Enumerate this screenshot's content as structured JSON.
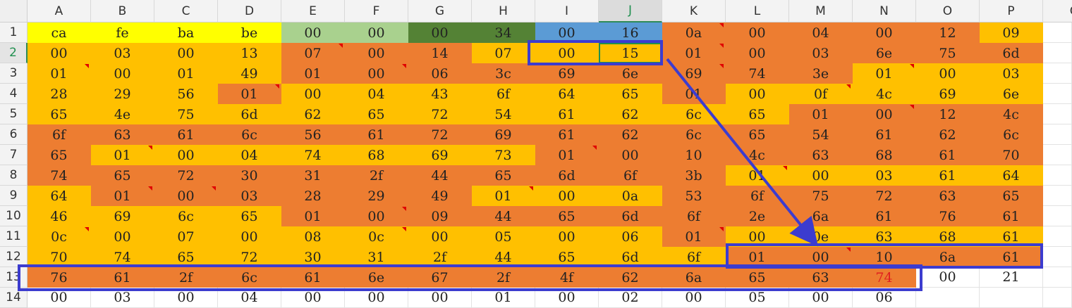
{
  "columns": [
    "A",
    "B",
    "C",
    "D",
    "E",
    "F",
    "G",
    "H",
    "I",
    "J",
    "K",
    "L",
    "M",
    "N",
    "O",
    "P",
    "Q"
  ],
  "selected_column": "J",
  "selected_row": "2",
  "colors": {
    "yellow": "#ffff00",
    "light_green": "#a9d18e",
    "dark_green": "#548235",
    "blue": "#5b9bd5",
    "orange": "#ed7d31",
    "gold": "#ffc000",
    "white": "#ffffff",
    "annotation": "#3c3ccf"
  },
  "rows": [
    {
      "label": "1",
      "cells": [
        {
          "v": "ca",
          "c": "yellow"
        },
        {
          "v": "fe",
          "c": "yellow"
        },
        {
          "v": "ba",
          "c": "yellow"
        },
        {
          "v": "be",
          "c": "yellow"
        },
        {
          "v": "00",
          "c": "light_green"
        },
        {
          "v": "00",
          "c": "light_green"
        },
        {
          "v": "00",
          "c": "dark_green"
        },
        {
          "v": "34",
          "c": "dark_green"
        },
        {
          "v": "00",
          "c": "blue"
        },
        {
          "v": "16",
          "c": "blue"
        },
        {
          "v": "0a",
          "c": "orange",
          "m": 1
        },
        {
          "v": "00",
          "c": "orange"
        },
        {
          "v": "04",
          "c": "orange"
        },
        {
          "v": "00",
          "c": "orange"
        },
        {
          "v": "12",
          "c": "orange"
        },
        {
          "v": "09",
          "c": "gold"
        }
      ]
    },
    {
      "label": "2",
      "cells": [
        {
          "v": "00",
          "c": "gold"
        },
        {
          "v": "03",
          "c": "gold"
        },
        {
          "v": "00",
          "c": "gold"
        },
        {
          "v": "13",
          "c": "gold"
        },
        {
          "v": "07",
          "c": "orange",
          "m": 1
        },
        {
          "v": "00",
          "c": "orange"
        },
        {
          "v": "14",
          "c": "orange"
        },
        {
          "v": "07",
          "c": "gold"
        },
        {
          "v": "00",
          "c": "gold"
        },
        {
          "v": "15",
          "c": "gold",
          "a": 1
        },
        {
          "v": "01",
          "c": "orange",
          "m": 1
        },
        {
          "v": "00",
          "c": "orange"
        },
        {
          "v": "03",
          "c": "orange"
        },
        {
          "v": "6e",
          "c": "orange"
        },
        {
          "v": "75",
          "c": "orange"
        },
        {
          "v": "6d",
          "c": "orange"
        }
      ]
    },
    {
      "label": "3",
      "cells": [
        {
          "v": "01",
          "c": "gold",
          "m": 1
        },
        {
          "v": "00",
          "c": "gold"
        },
        {
          "v": "01",
          "c": "gold"
        },
        {
          "v": "49",
          "c": "gold"
        },
        {
          "v": "01",
          "c": "orange"
        },
        {
          "v": "00",
          "c": "orange",
          "m": 1
        },
        {
          "v": "06",
          "c": "orange"
        },
        {
          "v": "3c",
          "c": "orange"
        },
        {
          "v": "69",
          "c": "orange"
        },
        {
          "v": "6e",
          "c": "orange"
        },
        {
          "v": "69",
          "c": "orange",
          "m": 1
        },
        {
          "v": "74",
          "c": "orange"
        },
        {
          "v": "3e",
          "c": "orange"
        },
        {
          "v": "01",
          "c": "gold",
          "m": 1
        },
        {
          "v": "00",
          "c": "gold"
        },
        {
          "v": "03",
          "c": "gold"
        }
      ]
    },
    {
      "label": "4",
      "cells": [
        {
          "v": "28",
          "c": "gold"
        },
        {
          "v": "29",
          "c": "gold"
        },
        {
          "v": "56",
          "c": "gold"
        },
        {
          "v": "01",
          "c": "orange",
          "m": 1
        },
        {
          "v": "00",
          "c": "gold"
        },
        {
          "v": "04",
          "c": "gold"
        },
        {
          "v": "43",
          "c": "gold"
        },
        {
          "v": "6f",
          "c": "gold"
        },
        {
          "v": "64",
          "c": "gold"
        },
        {
          "v": "65",
          "c": "gold"
        },
        {
          "v": "01",
          "c": "orange"
        },
        {
          "v": "00",
          "c": "gold"
        },
        {
          "v": "0f",
          "c": "gold",
          "m": 1
        },
        {
          "v": "4c",
          "c": "gold"
        },
        {
          "v": "69",
          "c": "gold"
        },
        {
          "v": "6e",
          "c": "gold"
        }
      ]
    },
    {
      "label": "5",
      "cells": [
        {
          "v": "65",
          "c": "gold"
        },
        {
          "v": "4e",
          "c": "gold"
        },
        {
          "v": "75",
          "c": "gold"
        },
        {
          "v": "6d",
          "c": "gold"
        },
        {
          "v": "62",
          "c": "gold"
        },
        {
          "v": "65",
          "c": "gold"
        },
        {
          "v": "72",
          "c": "gold"
        },
        {
          "v": "54",
          "c": "gold"
        },
        {
          "v": "61",
          "c": "gold"
        },
        {
          "v": "62",
          "c": "gold"
        },
        {
          "v": "6c",
          "c": "gold"
        },
        {
          "v": "65",
          "c": "gold"
        },
        {
          "v": "01",
          "c": "orange"
        },
        {
          "v": "00",
          "c": "orange",
          "m": 1
        },
        {
          "v": "12",
          "c": "orange"
        },
        {
          "v": "4c",
          "c": "orange"
        }
      ]
    },
    {
      "label": "6",
      "cells": [
        {
          "v": "6f",
          "c": "orange"
        },
        {
          "v": "63",
          "c": "orange"
        },
        {
          "v": "61",
          "c": "orange"
        },
        {
          "v": "6c",
          "c": "orange"
        },
        {
          "v": "56",
          "c": "orange"
        },
        {
          "v": "61",
          "c": "orange"
        },
        {
          "v": "72",
          "c": "orange"
        },
        {
          "v": "69",
          "c": "orange"
        },
        {
          "v": "61",
          "c": "orange"
        },
        {
          "v": "62",
          "c": "orange"
        },
        {
          "v": "6c",
          "c": "orange"
        },
        {
          "v": "65",
          "c": "orange"
        },
        {
          "v": "54",
          "c": "orange"
        },
        {
          "v": "61",
          "c": "orange"
        },
        {
          "v": "62",
          "c": "orange"
        },
        {
          "v": "6c",
          "c": "orange"
        }
      ]
    },
    {
      "label": "7",
      "cells": [
        {
          "v": "65",
          "c": "orange"
        },
        {
          "v": "01",
          "c": "gold",
          "m": 1
        },
        {
          "v": "00",
          "c": "gold"
        },
        {
          "v": "04",
          "c": "gold"
        },
        {
          "v": "74",
          "c": "gold"
        },
        {
          "v": "68",
          "c": "gold"
        },
        {
          "v": "69",
          "c": "gold"
        },
        {
          "v": "73",
          "c": "gold"
        },
        {
          "v": "01",
          "c": "orange",
          "m": 1
        },
        {
          "v": "00",
          "c": "orange"
        },
        {
          "v": "10",
          "c": "orange"
        },
        {
          "v": "4c",
          "c": "orange"
        },
        {
          "v": "63",
          "c": "orange"
        },
        {
          "v": "68",
          "c": "orange"
        },
        {
          "v": "61",
          "c": "orange"
        },
        {
          "v": "70",
          "c": "orange"
        }
      ]
    },
    {
      "label": "8",
      "cells": [
        {
          "v": "74",
          "c": "orange"
        },
        {
          "v": "65",
          "c": "orange"
        },
        {
          "v": "72",
          "c": "orange"
        },
        {
          "v": "30",
          "c": "orange"
        },
        {
          "v": "31",
          "c": "orange"
        },
        {
          "v": "2f",
          "c": "orange"
        },
        {
          "v": "44",
          "c": "orange"
        },
        {
          "v": "65",
          "c": "orange"
        },
        {
          "v": "6d",
          "c": "orange"
        },
        {
          "v": "6f",
          "c": "orange"
        },
        {
          "v": "3b",
          "c": "orange"
        },
        {
          "v": "01",
          "c": "gold",
          "m": 1
        },
        {
          "v": "00",
          "c": "gold"
        },
        {
          "v": "03",
          "c": "gold"
        },
        {
          "v": "61",
          "c": "gold"
        },
        {
          "v": "64",
          "c": "gold"
        }
      ]
    },
    {
      "label": "9",
      "cells": [
        {
          "v": "64",
          "c": "gold"
        },
        {
          "v": "01",
          "c": "orange",
          "m": 1
        },
        {
          "v": "00",
          "c": "orange",
          "m": 1
        },
        {
          "v": "03",
          "c": "orange"
        },
        {
          "v": "28",
          "c": "orange"
        },
        {
          "v": "29",
          "c": "orange"
        },
        {
          "v": "49",
          "c": "orange"
        },
        {
          "v": "01",
          "c": "gold",
          "m": 1
        },
        {
          "v": "00",
          "c": "gold"
        },
        {
          "v": "0a",
          "c": "gold"
        },
        {
          "v": "53",
          "c": "orange"
        },
        {
          "v": "6f",
          "c": "orange"
        },
        {
          "v": "75",
          "c": "orange"
        },
        {
          "v": "72",
          "c": "orange"
        },
        {
          "v": "63",
          "c": "orange"
        },
        {
          "v": "65",
          "c": "orange"
        }
      ]
    },
    {
      "label": "10",
      "cells": [
        {
          "v": "46",
          "c": "gold"
        },
        {
          "v": "69",
          "c": "gold"
        },
        {
          "v": "6c",
          "c": "gold"
        },
        {
          "v": "65",
          "c": "gold"
        },
        {
          "v": "01",
          "c": "orange"
        },
        {
          "v": "00",
          "c": "orange",
          "m": 1
        },
        {
          "v": "09",
          "c": "orange"
        },
        {
          "v": "44",
          "c": "orange"
        },
        {
          "v": "65",
          "c": "orange"
        },
        {
          "v": "6d",
          "c": "orange"
        },
        {
          "v": "6f",
          "c": "orange"
        },
        {
          "v": "2e",
          "c": "orange"
        },
        {
          "v": "6a",
          "c": "orange"
        },
        {
          "v": "61",
          "c": "orange"
        },
        {
          "v": "76",
          "c": "orange"
        },
        {
          "v": "61",
          "c": "orange"
        }
      ]
    },
    {
      "label": "11",
      "cells": [
        {
          "v": "0c",
          "c": "gold",
          "m": 1
        },
        {
          "v": "00",
          "c": "gold"
        },
        {
          "v": "07",
          "c": "gold"
        },
        {
          "v": "00",
          "c": "gold"
        },
        {
          "v": "08",
          "c": "gold"
        },
        {
          "v": "0c",
          "c": "gold",
          "m": 1
        },
        {
          "v": "00",
          "c": "gold"
        },
        {
          "v": "05",
          "c": "gold"
        },
        {
          "v": "00",
          "c": "gold"
        },
        {
          "v": "06",
          "c": "gold"
        },
        {
          "v": "01",
          "c": "orange",
          "m": 1
        },
        {
          "v": "00",
          "c": "gold"
        },
        {
          "v": "0e",
          "c": "gold"
        },
        {
          "v": "63",
          "c": "gold"
        },
        {
          "v": "68",
          "c": "gold"
        },
        {
          "v": "61",
          "c": "gold"
        }
      ]
    },
    {
      "label": "12",
      "cells": [
        {
          "v": "70",
          "c": "gold"
        },
        {
          "v": "74",
          "c": "gold"
        },
        {
          "v": "65",
          "c": "gold"
        },
        {
          "v": "72",
          "c": "gold"
        },
        {
          "v": "30",
          "c": "gold"
        },
        {
          "v": "31",
          "c": "gold"
        },
        {
          "v": "2f",
          "c": "gold"
        },
        {
          "v": "44",
          "c": "gold"
        },
        {
          "v": "65",
          "c": "gold"
        },
        {
          "v": "6d",
          "c": "gold"
        },
        {
          "v": "6f",
          "c": "gold"
        },
        {
          "v": "01",
          "c": "orange"
        },
        {
          "v": "00",
          "c": "orange",
          "m": 1
        },
        {
          "v": "10",
          "c": "orange"
        },
        {
          "v": "6a",
          "c": "orange"
        },
        {
          "v": "61",
          "c": "orange"
        }
      ]
    },
    {
      "label": "13",
      "cells": [
        {
          "v": "76",
          "c": "orange"
        },
        {
          "v": "61",
          "c": "orange"
        },
        {
          "v": "2f",
          "c": "orange"
        },
        {
          "v": "6c",
          "c": "orange"
        },
        {
          "v": "61",
          "c": "orange"
        },
        {
          "v": "6e",
          "c": "orange"
        },
        {
          "v": "67",
          "c": "orange"
        },
        {
          "v": "2f",
          "c": "orange"
        },
        {
          "v": "4f",
          "c": "orange"
        },
        {
          "v": "62",
          "c": "orange"
        },
        {
          "v": "6a",
          "c": "orange"
        },
        {
          "v": "65",
          "c": "orange"
        },
        {
          "v": "63",
          "c": "orange"
        },
        {
          "v": "74",
          "c": "orange",
          "r": 1
        },
        {
          "v": "00",
          "c": "white"
        },
        {
          "v": "21",
          "c": "white"
        }
      ]
    },
    {
      "label": "14",
      "cells": [
        {
          "v": "00",
          "c": "white"
        },
        {
          "v": "03",
          "c": "white"
        },
        {
          "v": "00",
          "c": "white"
        },
        {
          "v": "04",
          "c": "white"
        },
        {
          "v": "00",
          "c": "white"
        },
        {
          "v": "00",
          "c": "white"
        },
        {
          "v": "00",
          "c": "white"
        },
        {
          "v": "01",
          "c": "white"
        },
        {
          "v": "00",
          "c": "white"
        },
        {
          "v": "02",
          "c": "white"
        },
        {
          "v": "00",
          "c": "white"
        },
        {
          "v": "05",
          "c": "white"
        },
        {
          "v": "00",
          "c": "white"
        },
        {
          "v": "06",
          "c": "white"
        },
        {
          "v": "",
          "c": "white"
        },
        {
          "v": "",
          "c": "white"
        }
      ]
    }
  ]
}
